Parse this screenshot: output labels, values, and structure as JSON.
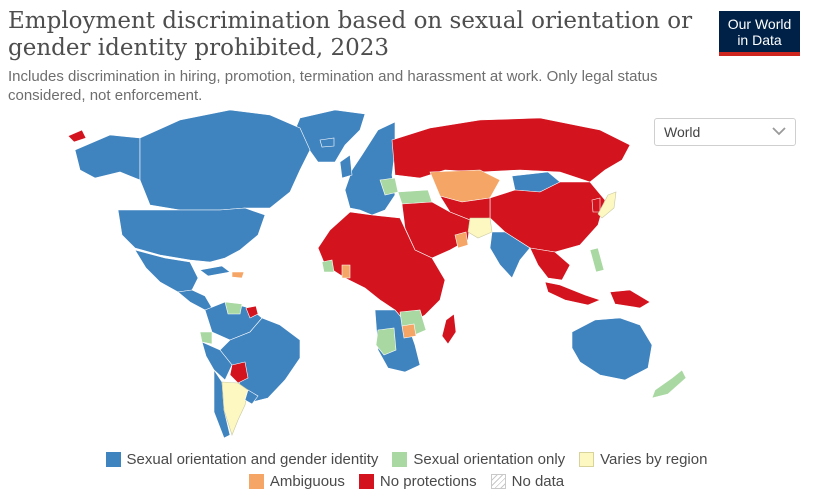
{
  "header": {
    "title": "Employment discrimination based on sexual orientation or gender identity prohibited, 2023",
    "subtitle": "Includes discrimination in hiring, promotion, termination and harassment at work. Only legal status considered, not enforcement."
  },
  "logo": {
    "line1": "Our World",
    "line2": "in Data"
  },
  "region_select": {
    "value": "World",
    "icon": "chevron-down-icon"
  },
  "colors": {
    "both": "#3f83bf",
    "orientation_only": "#a9d8a2",
    "varies": "#fdf8c2",
    "ambiguous": "#f5a667",
    "none": "#d3131e",
    "no_data": "#e5e5e5",
    "ocean": "#ffffff"
  },
  "legend": {
    "items": [
      {
        "label": "Sexual orientation and gender identity",
        "color": "#3f83bf"
      },
      {
        "label": "Sexual orientation only",
        "color": "#a9d8a2"
      },
      {
        "label": "Varies by region",
        "color": "#fdf8c2"
      },
      {
        "label": "Ambiguous",
        "color": "#f5a667"
      },
      {
        "label": "No protections",
        "color": "#d3131e"
      },
      {
        "label": "No data",
        "color": "none"
      }
    ]
  }
}
